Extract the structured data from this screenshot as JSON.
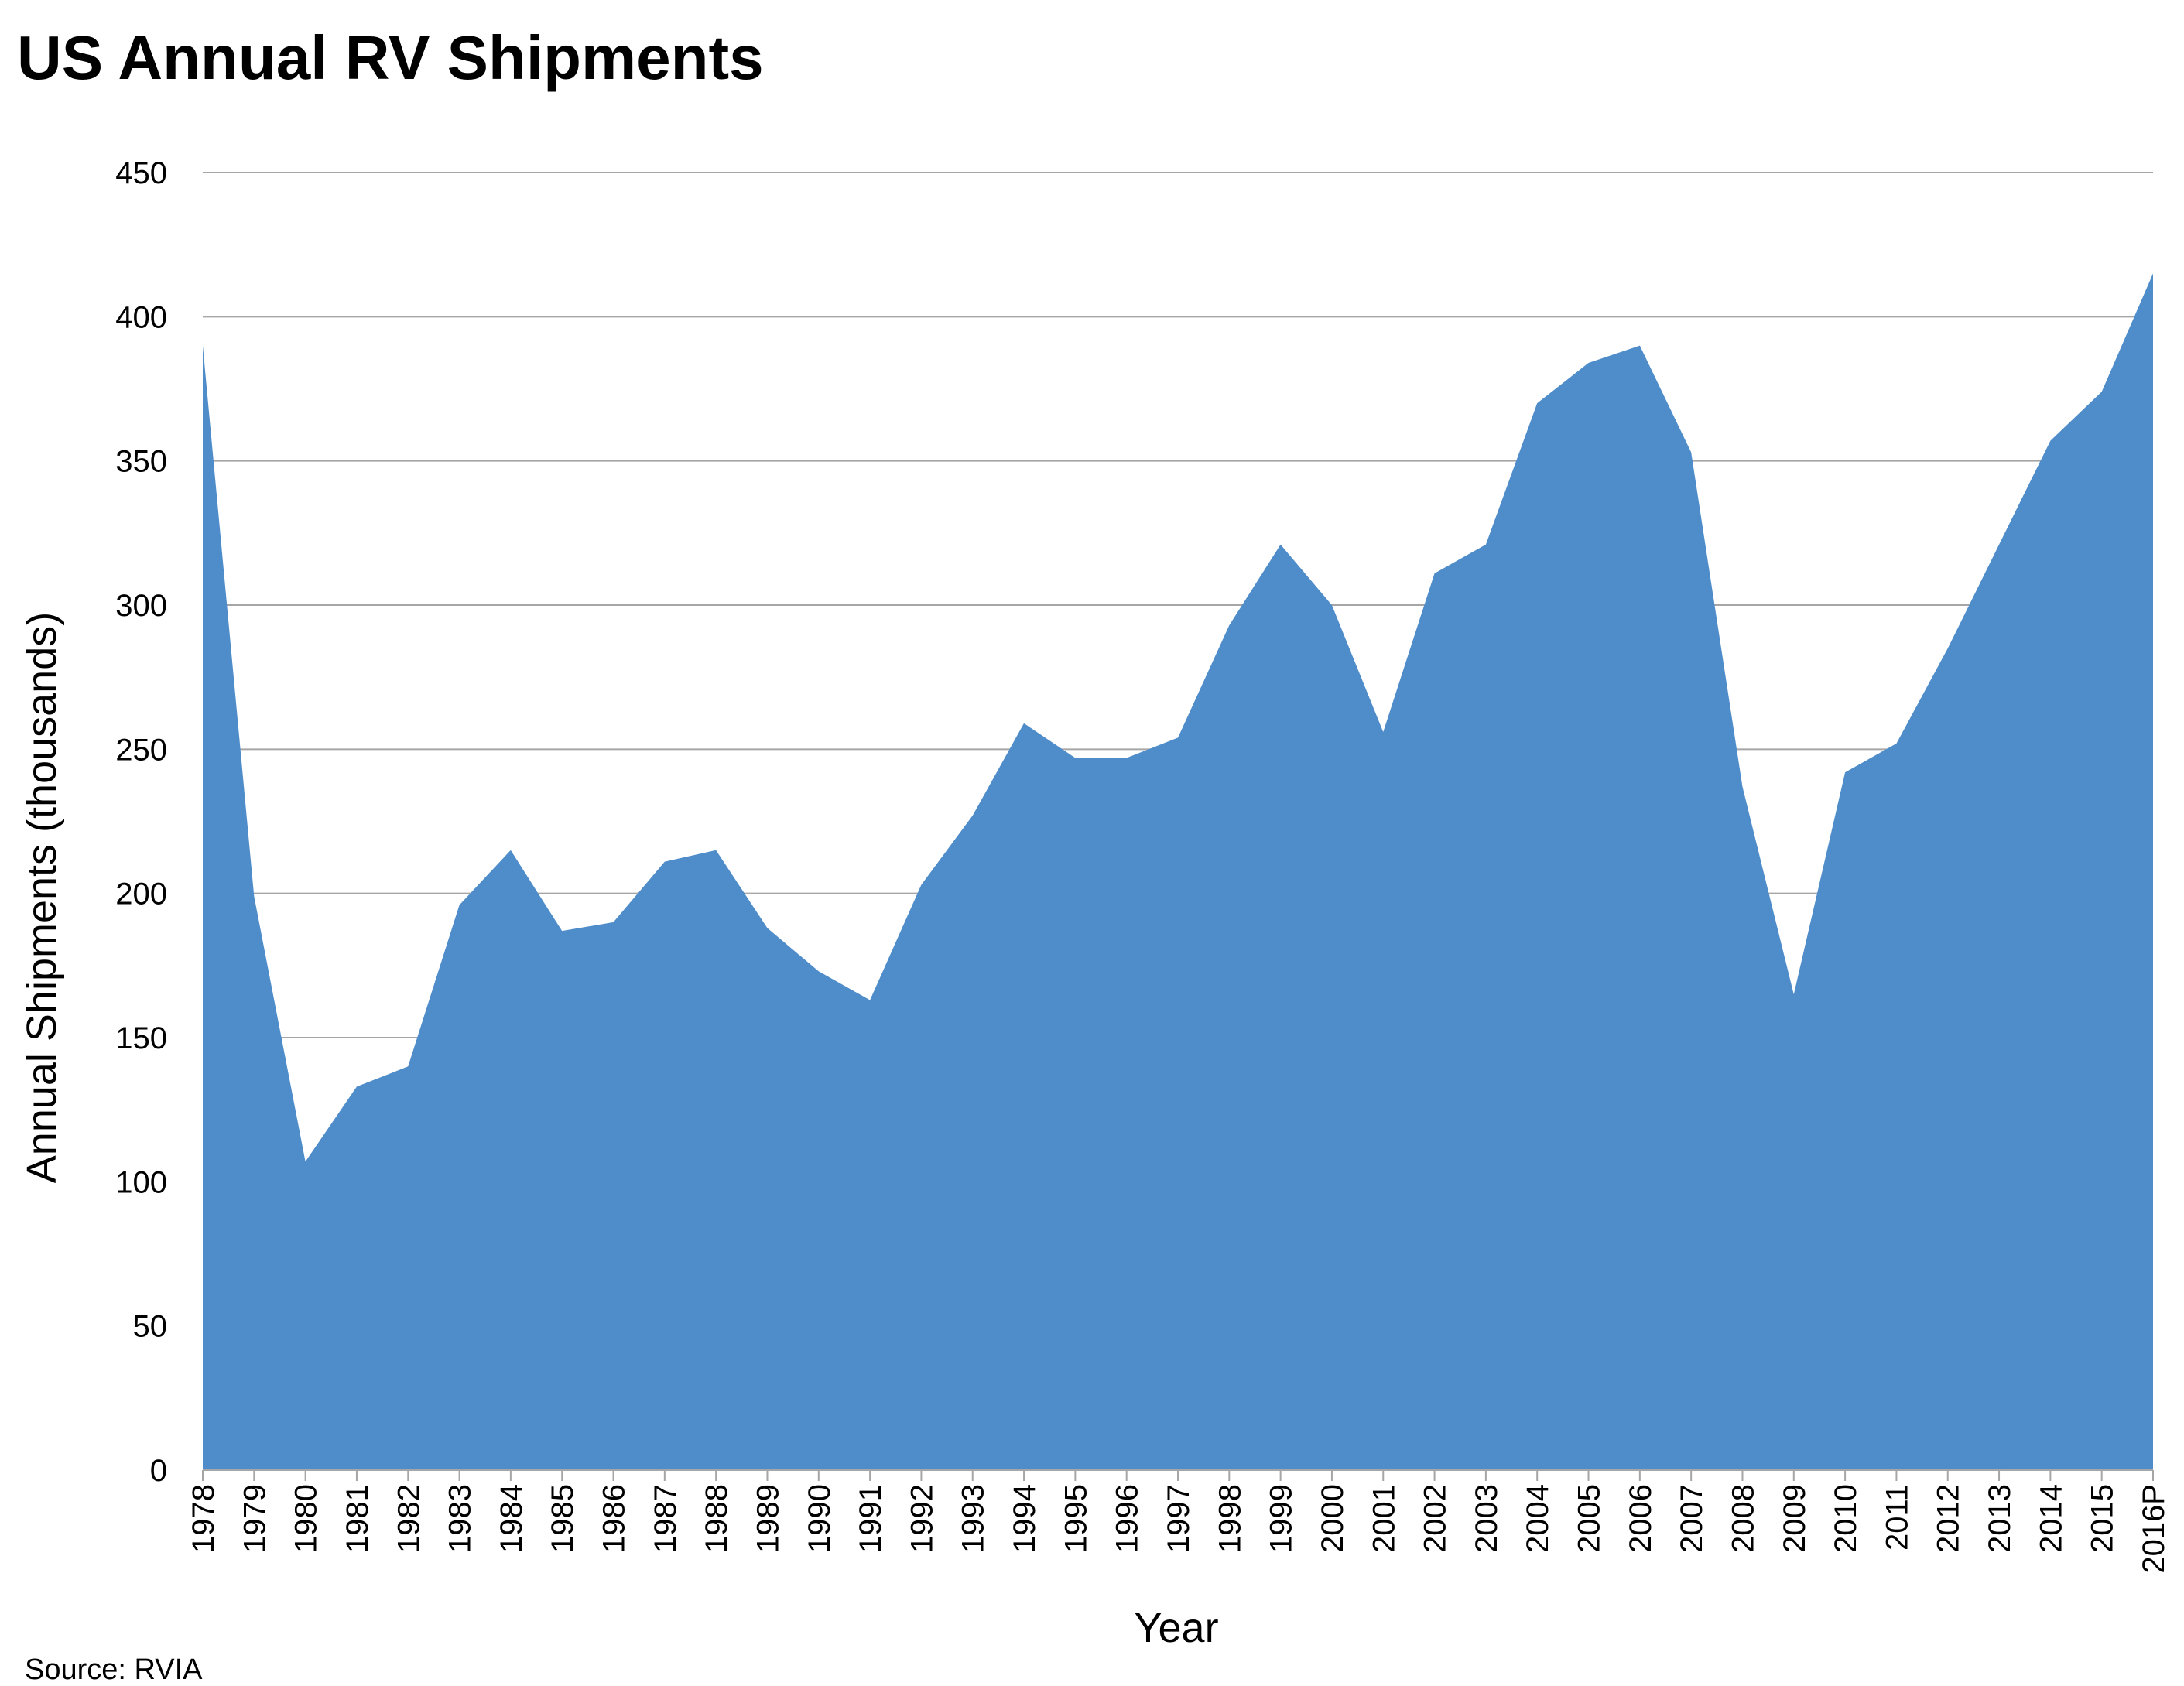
{
  "chart_data": {
    "type": "area",
    "title": "US Annual RV Shipments",
    "xlabel": "Year",
    "ylabel": "Annual Shipments (thousands)",
    "source": "Source: RVIA",
    "ylim": [
      0,
      450
    ],
    "yticks": [
      0,
      50,
      100,
      150,
      200,
      250,
      300,
      350,
      400,
      450
    ],
    "grid": true,
    "fill_color": "#4f8dca",
    "grid_color": "#a6a6a6",
    "categories": [
      "1978",
      "1979",
      "1980",
      "1981",
      "1982",
      "1983",
      "1984",
      "1985",
      "1986",
      "1987",
      "1988",
      "1989",
      "1990",
      "1991",
      "1992",
      "1993",
      "1994",
      "1995",
      "1996",
      "1997",
      "1998",
      "1999",
      "2000",
      "2001",
      "2002",
      "2003",
      "2004",
      "2005",
      "2006",
      "2007",
      "2008",
      "2009",
      "2010",
      "2011",
      "2012",
      "2013",
      "2014",
      "2015",
      "2016P"
    ],
    "values": [
      390,
      199,
      107,
      133,
      140,
      196,
      215,
      187,
      190,
      211,
      215,
      188,
      173,
      163,
      203,
      227,
      259,
      247,
      247,
      254,
      293,
      321,
      300,
      256,
      311,
      321,
      370,
      384,
      390,
      353,
      237,
      165,
      242,
      252,
      285,
      321,
      357,
      374,
      415
    ]
  }
}
